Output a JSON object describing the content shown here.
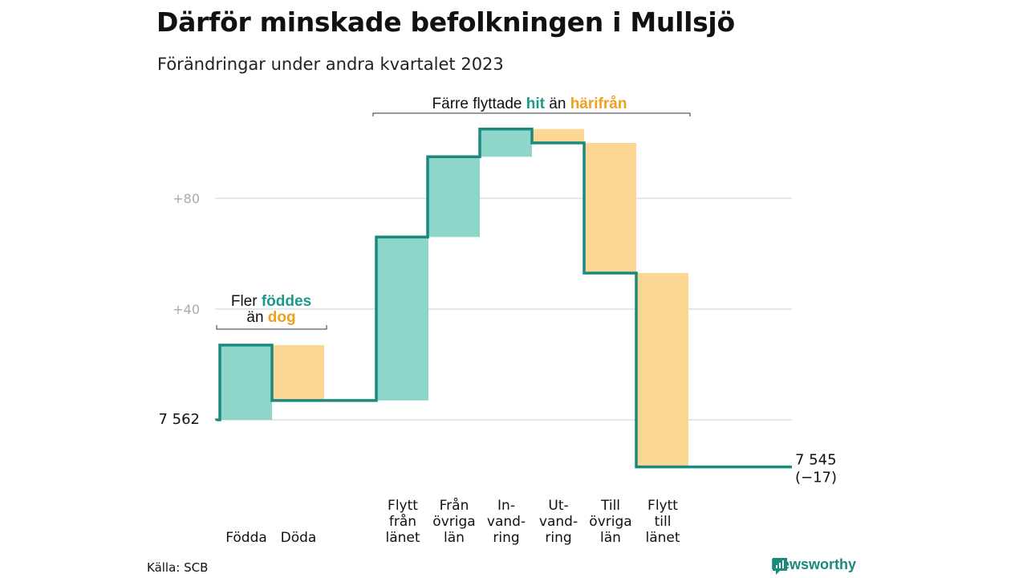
{
  "title": "Därför minskade befolkningen i Mullsjö",
  "subtitle": "Förändringar under andra kvartalet 2023",
  "source": "Källa: SCB",
  "brand": "Newsworthy",
  "colors": {
    "increase": "#8ed5ca",
    "decrease": "#fbd793",
    "line": "#1b8a7e",
    "grid": "#dddddd",
    "tick": "#aaaaaa",
    "hit_text": "#1b9a8c",
    "away_text": "#f0a020"
  },
  "annotations": {
    "births": {
      "line1_pre": "Fler ",
      "line1_em": "föddes",
      "line2_pre": "än ",
      "line2_em": "dog"
    },
    "moves": {
      "pre": "Färre flyttade ",
      "em1": "hit",
      "mid": " än ",
      "em2": "härifrån"
    }
  },
  "chart_data": {
    "type": "waterfall",
    "start_label": "7  562",
    "end_label_line1": "7 545",
    "end_label_line2": "(−17)",
    "start": 7562,
    "end": 7545,
    "y_ticks": [
      {
        "label": "+80",
        "offset": 80
      },
      {
        "label": "+40",
        "offset": 40
      }
    ],
    "ylim_offset": [
      -20,
      105
    ],
    "steps": [
      {
        "category": [
          "Födda"
        ],
        "delta": 27,
        "kind": "increase",
        "group": "natural"
      },
      {
        "category": [
          "Döda"
        ],
        "delta": -20,
        "kind": "decrease",
        "group": "natural"
      },
      {
        "category": [
          "Flytt",
          "från",
          "länet"
        ],
        "delta": 59,
        "kind": "increase",
        "group": "moves"
      },
      {
        "category": [
          "Från",
          "övriga",
          "län"
        ],
        "delta": 29,
        "kind": "increase",
        "group": "moves"
      },
      {
        "category": [
          "In-",
          "vand-",
          "ring"
        ],
        "delta": 10,
        "kind": "increase",
        "group": "moves"
      },
      {
        "category": [
          "Ut-",
          "vand-",
          "ring"
        ],
        "delta": -5,
        "kind": "decrease",
        "group": "moves"
      },
      {
        "category": [
          "Till",
          "övriga",
          "län"
        ],
        "delta": -47,
        "kind": "decrease",
        "group": "moves"
      },
      {
        "category": [
          "Flytt",
          "till",
          "länet"
        ],
        "delta": -70,
        "kind": "decrease",
        "group": "moves"
      }
    ]
  }
}
